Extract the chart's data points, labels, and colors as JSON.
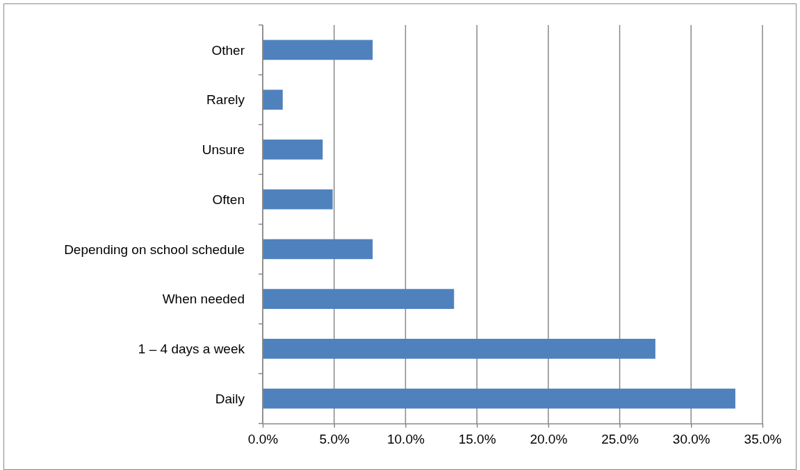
{
  "chart_data": {
    "type": "bar",
    "orientation": "horizontal",
    "categories": [
      "Other",
      "Rarely",
      "Unsure",
      "Often",
      "Depending on school schedule",
      "When needed",
      "1 – 4 days a week",
      "Daily"
    ],
    "values": [
      7.7,
      1.4,
      4.2,
      4.9,
      7.7,
      13.4,
      27.5,
      33.1
    ],
    "color": "#4f81bd",
    "xlim": [
      0,
      35
    ],
    "xticks": [
      {
        "value": 0,
        "label": "0.0%"
      },
      {
        "value": 5,
        "label": "5.0%"
      },
      {
        "value": 10,
        "label": "10.0%"
      },
      {
        "value": 15,
        "label": "15.0%"
      },
      {
        "value": 20,
        "label": "20.0%"
      },
      {
        "value": 25,
        "label": "25.0%"
      },
      {
        "value": 30,
        "label": "30.0%"
      },
      {
        "value": 35,
        "label": "35.0%"
      }
    ],
    "grid": "x"
  }
}
